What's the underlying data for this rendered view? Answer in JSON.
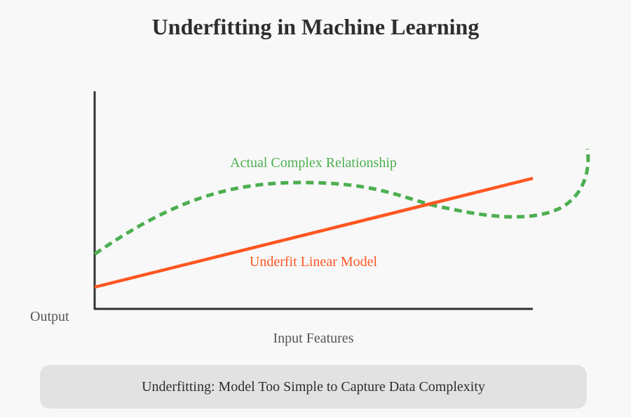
{
  "title": "Underfitting in Machine Learning",
  "axes": {
    "y_label": "Output",
    "x_label": "Input Features"
  },
  "curves": {
    "actual": {
      "label": "Actual Complex Relationship",
      "color": "#4caf50",
      "style": "dashed"
    },
    "model": {
      "label": "Underfit Linear Model",
      "color": "#ff5722",
      "style": "solid"
    }
  },
  "caption": "Underfitting: Model Too Simple to Capture Data Complexity"
}
